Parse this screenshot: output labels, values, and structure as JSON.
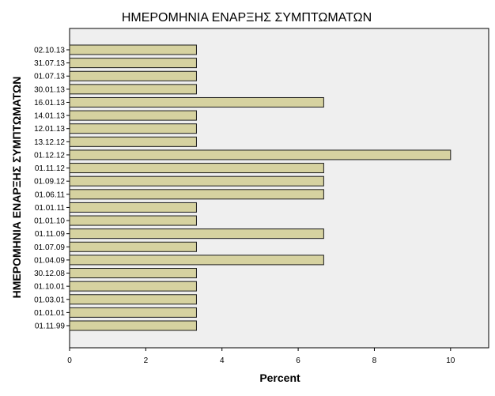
{
  "chart_data": {
    "type": "bar",
    "orientation": "horizontal",
    "title": "ΗΜΕΡΟΜΗΝΙΑ ΕΝΑΡΞΗΣ ΣΥΜΠΤΩΜΑΤΩΝ",
    "xlabel": "Percent",
    "ylabel": "ΗΜΕΡΟΜΗΝΙΑ ΕΝΑΡΞΗΣ ΣΥΜΠΤΩΜΑΤΩΝ",
    "xlim": [
      0,
      11
    ],
    "xticks": [
      0,
      2,
      4,
      6,
      8,
      10
    ],
    "grid": false,
    "categories": [
      "02.10.13",
      "31.07.13",
      "01.07.13",
      "30.01.13",
      "16.01.13",
      "14.01.13",
      "12.01.13",
      "13.12.12",
      "01.12.12",
      "01.11.12",
      "01.09.12",
      "01.06.11",
      "01.01.11",
      "01.01.10",
      "01.11.09",
      "01.07.09",
      "01.04.09",
      "30.12.08",
      "01.10.01",
      "01.03.01",
      "01.01.01",
      "01.11.99"
    ],
    "values": [
      3.33,
      3.33,
      3.33,
      3.33,
      6.67,
      3.33,
      3.33,
      3.33,
      10.0,
      6.67,
      6.67,
      6.67,
      3.33,
      3.33,
      6.67,
      3.33,
      6.67,
      3.33,
      3.33,
      3.33,
      3.33,
      3.33
    ],
    "colors": {
      "bar_fill": "#d6d2a0",
      "bar_stroke": "#1a1a1a",
      "plot_background": "#efefef",
      "axis": "#000000"
    }
  }
}
